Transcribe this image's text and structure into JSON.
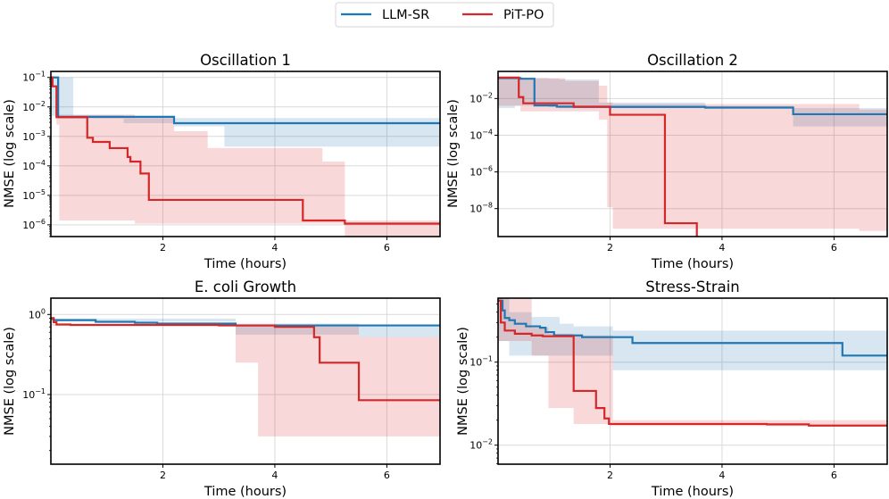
{
  "legend": {
    "placement": "top-center",
    "entries": [
      {
        "label": "LLM-SR",
        "color": "#1f77b4"
      },
      {
        "label": "PiT-PO",
        "color": "#d62728"
      }
    ]
  },
  "chart_data": [
    {
      "type": "line",
      "title": "Oscillation 1",
      "xlabel": "Time (hours)",
      "ylabel": "NMSE (log scale)",
      "yscale": "log",
      "grid": true,
      "xlim": [
        0,
        6.95
      ],
      "ylim": [
        4e-07,
        0.16
      ],
      "xticks": [
        2,
        4,
        6
      ],
      "yticks": [
        1e-06,
        1e-05,
        0.0001,
        0.001,
        0.01,
        0.1
      ],
      "ytick_labels": [
        "10^-6",
        "10^-5",
        "10^-4",
        "10^-3",
        "10^-2",
        "10^-1"
      ],
      "series": [
        {
          "name": "LLM-SR",
          "step_x": [
            0.0,
            0.13,
            2.2,
            6.95
          ],
          "step_y": [
            0.1,
            0.0046,
            0.0028,
            0.0028
          ],
          "band_x": [
            0.0,
            0.13,
            0.4,
            1.3,
            2.2,
            3.1,
            6.95
          ],
          "band_lo": [
            0.005,
            0.004,
            0.004,
            0.0028,
            0.0022,
            0.00045,
            0.00045
          ],
          "band_hi": [
            0.1,
            0.1,
            0.0052,
            0.005,
            0.0042,
            0.0042,
            0.0042
          ]
        },
        {
          "name": "PiT-PO",
          "step_x": [
            0.0,
            0.03,
            0.1,
            0.65,
            0.75,
            1.05,
            1.37,
            1.42,
            1.6,
            1.75,
            4.5,
            5.25,
            6.95
          ],
          "step_y": [
            0.1,
            0.05,
            0.0045,
            0.0009,
            0.00065,
            0.0004,
            0.0002,
            0.00014,
            5.5e-05,
            7e-06,
            1.4e-06,
            1.1e-06,
            1.1e-06
          ],
          "band_x": [
            0.1,
            0.15,
            0.6,
            1.5,
            2.2,
            2.8,
            4.85,
            5.25,
            6.95
          ],
          "band_lo": [
            0.0025,
            1.4e-06,
            1.4e-06,
            1.1e-06,
            1.1e-06,
            1.1e-06,
            1.1e-06,
            4e-07,
            4e-07
          ],
          "band_hi": [
            0.0055,
            0.0055,
            0.0055,
            0.0042,
            0.0015,
            0.0004,
            0.00014,
            1.4e-06,
            1.4e-06
          ]
        }
      ]
    },
    {
      "type": "line",
      "title": "Oscillation 2",
      "xlabel": "Time (hours)",
      "ylabel": "NMSE (log scale)",
      "yscale": "log",
      "grid": true,
      "xlim": [
        0,
        6.95
      ],
      "ylim": [
        3e-10,
        0.3
      ],
      "xticks": [
        2,
        4,
        6
      ],
      "yticks": [
        1e-08,
        1e-06,
        0.0001,
        0.01
      ],
      "ytick_labels": [
        "10^-8",
        "10^-6",
        "10^-4",
        "10^-2"
      ],
      "series": [
        {
          "name": "LLM-SR",
          "step_x": [
            0.0,
            0.4,
            0.65,
            1.05,
            1.35,
            3.7,
            5.27,
            6.95
          ],
          "step_y": [
            0.13,
            0.12,
            0.0042,
            0.0036,
            0.0035,
            0.0032,
            0.0014,
            0.0014
          ],
          "band_x": [
            0.0,
            0.3,
            0.9,
            1.1,
            1.8,
            3.7,
            5.27,
            5.5,
            6.95
          ],
          "band_lo": [
            0.003,
            0.004,
            0.0034,
            0.003,
            0.003,
            0.0028,
            0.0003,
            0.0003,
            0.0003
          ],
          "band_hi": [
            0.14,
            0.13,
            0.12,
            0.11,
            0.006,
            0.004,
            0.003,
            0.003,
            0.003
          ]
        },
        {
          "name": "PiT-PO",
          "step_x": [
            0.0,
            0.37,
            0.45,
            1.35,
            2.0,
            2.98,
            3.55,
            6.95
          ],
          "step_y": [
            0.14,
            0.012,
            0.0055,
            0.0036,
            0.0013,
            1.6e-09,
            8e-11,
            8e-11
          ],
          "band_x": [
            0.0,
            0.4,
            1.2,
            1.8,
            1.95,
            2.05,
            6.45,
            6.95
          ],
          "band_lo": [
            0.004,
            0.002,
            0.002,
            0.0007,
            1.2e-08,
            8e-10,
            6e-10,
            6e-10
          ],
          "band_hi": [
            0.15,
            0.13,
            0.09,
            0.05,
            0.006,
            0.005,
            0.0025,
            0.0025
          ]
        }
      ]
    },
    {
      "type": "line",
      "title": "E. coli Growth",
      "xlabel": "Time (hours)",
      "ylabel": "NMSE (log scale)",
      "yscale": "log",
      "grid": true,
      "xlim": [
        0,
        6.95
      ],
      "ylim": [
        0.0135,
        1.6
      ],
      "xticks": [
        2,
        4,
        6
      ],
      "yticks": [
        0.1,
        1
      ],
      "ytick_labels": [
        "10^-1",
        "10^0"
      ],
      "series": [
        {
          "name": "LLM-SR",
          "step_x": [
            0.0,
            0.05,
            0.8,
            1.5,
            1.9,
            3.3,
            6.95
          ],
          "step_y": [
            0.88,
            0.85,
            0.81,
            0.79,
            0.77,
            0.73,
            0.73
          ],
          "band_x": [
            0.0,
            3.3,
            5.5,
            6.95
          ],
          "band_lo": [
            0.82,
            0.56,
            0.52,
            0.52
          ],
          "band_hi": [
            0.89,
            0.77,
            0.74,
            0.74
          ]
        },
        {
          "name": "PiT-PO",
          "step_x": [
            0.0,
            0.05,
            0.1,
            0.35,
            3.0,
            4.0,
            4.7,
            4.8,
            5.5,
            6.95
          ],
          "step_y": [
            0.9,
            0.8,
            0.75,
            0.74,
            0.73,
            0.7,
            0.52,
            0.25,
            0.085,
            0.085
          ],
          "band_x": [
            0.0,
            3.3,
            3.7,
            5.5,
            6.95
          ],
          "band_lo": [
            0.72,
            0.25,
            0.03,
            0.03,
            0.03
          ],
          "band_hi": [
            0.76,
            0.74,
            0.74,
            0.52,
            0.52
          ]
        }
      ]
    },
    {
      "type": "line",
      "title": "Stress-Strain",
      "xlabel": "Time (hours)",
      "ylabel": "NMSE (log scale)",
      "yscale": "log",
      "grid": true,
      "xlim": [
        0,
        6.95
      ],
      "ylim": [
        0.0059,
        0.59
      ],
      "xticks": [
        2,
        4,
        6
      ],
      "yticks": [
        0.01,
        0.1
      ],
      "ytick_labels": [
        "10^-2",
        "10^-1"
      ],
      "series": [
        {
          "name": "LLM-SR",
          "step_x": [
            0.0,
            0.08,
            0.12,
            0.2,
            0.3,
            0.5,
            0.75,
            0.85,
            1.0,
            1.5,
            2.4,
            6.15,
            6.95
          ],
          "step_y": [
            0.55,
            0.42,
            0.34,
            0.32,
            0.29,
            0.27,
            0.26,
            0.23,
            0.21,
            0.2,
            0.17,
            0.12,
            0.12
          ],
          "band_x": [
            0.0,
            0.2,
            0.6,
            1.1,
            1.35,
            2.05,
            2.4,
            6.95
          ],
          "band_lo": [
            0.18,
            0.12,
            0.12,
            0.12,
            0.12,
            0.08,
            0.08,
            0.08
          ],
          "band_hi": [
            0.59,
            0.4,
            0.35,
            0.29,
            0.27,
            0.24,
            0.24,
            0.24
          ]
        },
        {
          "name": "PiT-PO",
          "step_x": [
            0.0,
            0.05,
            0.12,
            0.3,
            0.6,
            0.8,
            1.35,
            1.75,
            1.9,
            1.98,
            4.8,
            5.55,
            6.95
          ],
          "step_y": [
            0.55,
            0.3,
            0.24,
            0.22,
            0.21,
            0.205,
            0.045,
            0.028,
            0.021,
            0.018,
            0.0178,
            0.0172,
            0.0172
          ],
          "band_x": [
            0.0,
            0.6,
            0.9,
            1.35,
            2.0,
            2.05,
            6.95
          ],
          "band_lo": [
            0.18,
            0.12,
            0.028,
            0.018,
            0.017,
            0.017,
            0.017
          ],
          "band_hi": [
            0.59,
            0.26,
            0.22,
            0.21,
            0.21,
            0.02,
            0.019
          ]
        }
      ]
    }
  ]
}
